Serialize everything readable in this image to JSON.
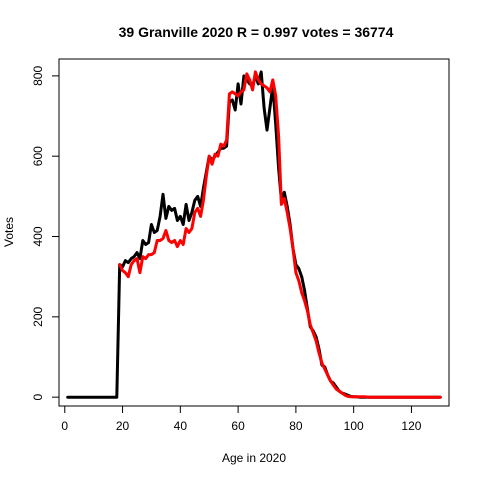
{
  "chart_data": {
    "type": "line",
    "title": "39 Granville 2020 R = 0.997 votes = 36774",
    "xlabel": "Age in 2020",
    "ylabel": "Votes",
    "xlim": [
      -2,
      133
    ],
    "ylim": [
      -22,
      842
    ],
    "xticks": [
      0,
      20,
      40,
      60,
      80,
      100,
      120
    ],
    "yticks": [
      0,
      200,
      400,
      600,
      800
    ],
    "grid": false,
    "series": [
      {
        "color": "#000000",
        "x": [
          1,
          2,
          3,
          4,
          5,
          6,
          7,
          8,
          9,
          10,
          11,
          12,
          13,
          14,
          15,
          16,
          17,
          18,
          19,
          20,
          21,
          22,
          23,
          24,
          25,
          26,
          27,
          28,
          29,
          30,
          31,
          32,
          33,
          34,
          35,
          36,
          37,
          38,
          39,
          40,
          41,
          42,
          43,
          44,
          45,
          46,
          47,
          48,
          49,
          50,
          51,
          52,
          53,
          54,
          55,
          56,
          57,
          58,
          59,
          60,
          61,
          62,
          63,
          64,
          65,
          66,
          67,
          68,
          69,
          70,
          71,
          72,
          73,
          74,
          75,
          76,
          77,
          78,
          79,
          80,
          81,
          82,
          83,
          84,
          85,
          86,
          87,
          88,
          89,
          90,
          91,
          92,
          93,
          94,
          95,
          96,
          97,
          98,
          99,
          100,
          101,
          102,
          103,
          104,
          105,
          106,
          107,
          108,
          109,
          110,
          111,
          112,
          113,
          114,
          115,
          116,
          117,
          118,
          119,
          120,
          121,
          122,
          123,
          124,
          125,
          126,
          127,
          128,
          129,
          130
        ],
        "y": [
          0,
          0,
          0,
          0,
          0,
          0,
          0,
          0,
          0,
          0,
          0,
          0,
          0,
          0,
          0,
          0,
          0,
          0,
          330,
          325,
          340,
          335,
          345,
          350,
          360,
          345,
          390,
          380,
          385,
          430,
          410,
          415,
          450,
          505,
          445,
          475,
          465,
          470,
          440,
          450,
          430,
          480,
          440,
          460,
          490,
          500,
          475,
          520,
          560,
          600,
          590,
          600,
          610,
          620,
          620,
          625,
          735,
          740,
          715,
          780,
          730,
          800,
          790,
          780,
          775,
          800,
          780,
          810,
          720,
          665,
          720,
          775,
          680,
          570,
          490,
          510,
          475,
          430,
          370,
          330,
          320,
          300,
          265,
          220,
          175,
          165,
          150,
          120,
          80,
          75,
          55,
          40,
          35,
          25,
          15,
          10,
          8,
          5,
          2,
          1,
          1,
          0,
          0,
          0,
          0,
          0,
          0,
          0,
          0,
          0,
          0,
          0,
          0,
          0,
          0,
          0,
          0,
          0,
          0,
          0,
          0,
          0,
          0,
          0,
          0,
          0,
          0,
          0,
          0,
          0
        ]
      },
      {
        "color": "#ff0000",
        "x": [
          19,
          20,
          21,
          22,
          23,
          24,
          25,
          26,
          27,
          28,
          29,
          30,
          31,
          32,
          33,
          34,
          35,
          36,
          37,
          38,
          39,
          40,
          41,
          42,
          43,
          44,
          45,
          46,
          47,
          48,
          49,
          50,
          51,
          52,
          53,
          54,
          55,
          56,
          57,
          58,
          59,
          60,
          61,
          62,
          63,
          64,
          65,
          66,
          67,
          68,
          69,
          70,
          71,
          72,
          73,
          74,
          75,
          76,
          77,
          78,
          79,
          80,
          81,
          82,
          83,
          84,
          85,
          86,
          87,
          88,
          89,
          90,
          91,
          92,
          93,
          94,
          95,
          96,
          97,
          98,
          99,
          100,
          101,
          102,
          103,
          104,
          105,
          106,
          107,
          108,
          109,
          110,
          111,
          112,
          113,
          114,
          115,
          116,
          117,
          118,
          119,
          120,
          121,
          122,
          123,
          124,
          125,
          126,
          127,
          128,
          129,
          130
        ],
        "y": [
          330,
          315,
          310,
          300,
          330,
          340,
          345,
          310,
          350,
          345,
          355,
          355,
          360,
          390,
          390,
          395,
          415,
          390,
          385,
          390,
          375,
          390,
          380,
          420,
          410,
          420,
          460,
          470,
          450,
          490,
          550,
          600,
          580,
          605,
          600,
          630,
          625,
          640,
          755,
          760,
          755,
          750,
          760,
          765,
          805,
          790,
          765,
          810,
          790,
          780,
          775,
          770,
          760,
          790,
          750,
          650,
          480,
          495,
          460,
          420,
          370,
          310,
          290,
          260,
          240,
          215,
          180,
          160,
          140,
          110,
          85,
          70,
          55,
          40,
          30,
          20,
          15,
          10,
          5,
          2,
          1,
          1,
          1,
          1,
          1,
          1,
          0,
          0,
          0,
          0,
          0,
          0,
          0,
          0,
          0,
          0,
          0,
          0,
          0,
          0,
          0,
          0,
          0,
          0,
          0,
          0,
          0,
          0,
          0,
          0,
          0,
          0
        ]
      }
    ]
  }
}
